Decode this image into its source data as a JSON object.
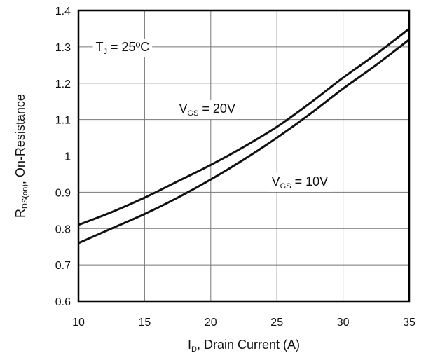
{
  "chart_data": {
    "type": "line",
    "xlabel": {
      "main": "I",
      "sub": "D",
      "rest": ", Drain Current (A)"
    },
    "ylabel": {
      "main": "R",
      "sub": "DS(on)",
      "rest": ", On-Resistance"
    },
    "xlim": [
      10,
      35
    ],
    "ylim": [
      0.6,
      1.4
    ],
    "xticks": [
      10,
      15,
      20,
      25,
      30,
      35
    ],
    "yticks": [
      0.6,
      0.7,
      0.8,
      0.9,
      1,
      1.1,
      1.2,
      1.3,
      1.4
    ],
    "grid": true,
    "series": [
      {
        "x": [
          10,
          12.5,
          15,
          17.5,
          20,
          22.5,
          25,
          27.5,
          30,
          32.5,
          35
        ],
        "y": [
          0.81,
          0.845,
          0.885,
          0.93,
          0.975,
          1.025,
          1.08,
          1.145,
          1.215,
          1.28,
          1.35
        ]
      },
      {
        "x": [
          10,
          12.5,
          15,
          17.5,
          20,
          22.5,
          25,
          27.5,
          30,
          32.5,
          35
        ],
        "y": [
          0.76,
          0.8,
          0.84,
          0.885,
          0.935,
          0.99,
          1.05,
          1.115,
          1.185,
          1.25,
          1.32
        ]
      }
    ],
    "annotations": [
      {
        "main": "T",
        "sub": "J",
        "rest": " = 25ºC",
        "x": 11.3,
        "y": 1.3
      },
      {
        "main": "V",
        "sub": "GS",
        "rest": " = 20V",
        "x": 17.6,
        "y": 1.13
      },
      {
        "main": "V",
        "sub": "GS",
        "rest": " = 10V",
        "x": 24.6,
        "y": 0.93
      }
    ]
  }
}
